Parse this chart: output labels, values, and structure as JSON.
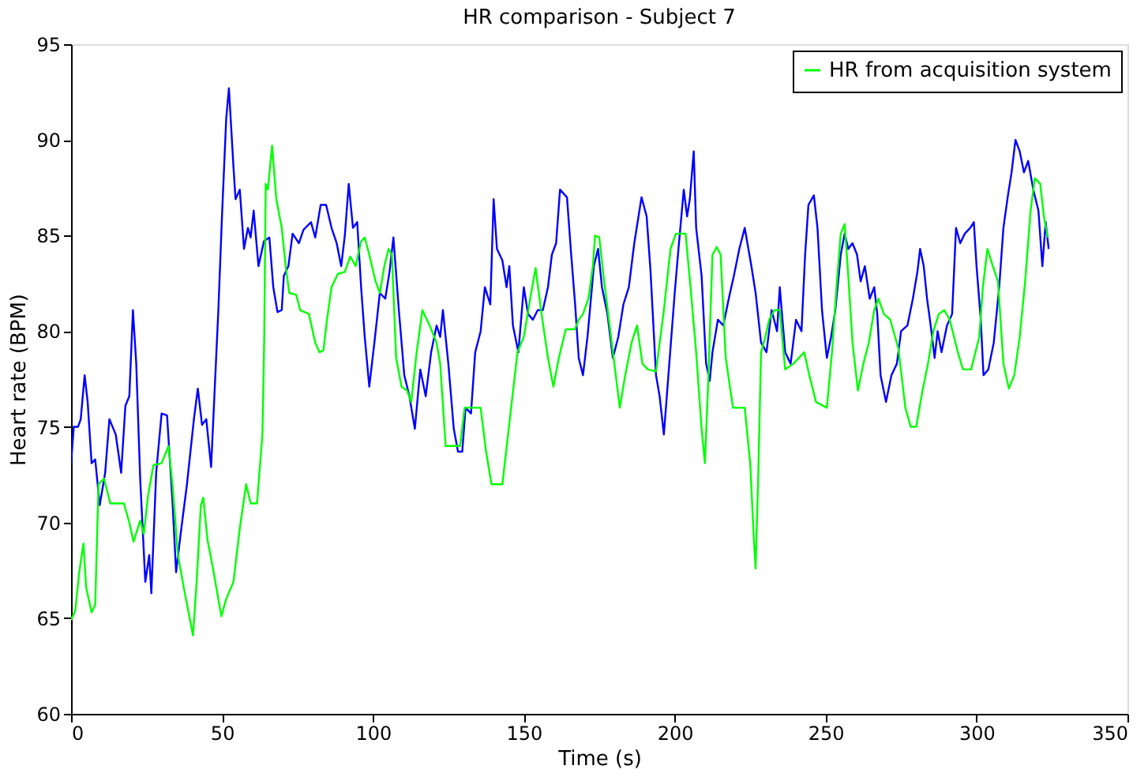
{
  "chart_data": {
    "type": "line",
    "title": "HR comparison - Subject 7",
    "xlabel": "Time (s)",
    "ylabel": "Heart rate (BPM)",
    "xlim": [
      0,
      350
    ],
    "xticks": [
      0,
      50,
      100,
      150,
      200,
      250,
      300,
      350
    ],
    "ylim": [
      60,
      95
    ],
    "yticks": [
      60,
      65,
      70,
      75,
      80,
      85,
      90,
      95
    ],
    "grid": false,
    "legend": "top right",
    "marker": "none",
    "line_style": "solid",
    "series": [
      {
        "color": "#0000ff",
        "x": [
          0,
          0.9,
          2.3,
          3.2,
          4.5,
          5.5,
          6.8,
          8.0,
          9.5,
          11.3,
          12.7,
          14.8,
          16.6,
          18.0,
          19.3,
          20.5,
          21.6,
          22.9,
          24.6,
          25.9,
          26.6,
          28.2,
          30.0,
          31.8,
          33.6,
          34.8,
          36.3,
          38.4,
          40.7,
          42.0,
          43.4,
          44.8,
          46.4,
          48.8,
          50.0,
          51.4,
          52.3,
          53.8,
          54.5,
          55.9,
          57.3,
          58.6,
          59.5,
          60.5,
          62.1,
          63.9,
          65.7,
          67.0,
          68.4,
          69.8,
          70.5,
          72.0,
          73.4,
          75.5,
          77.0,
          79.5,
          80.9,
          82.7,
          84.5,
          86.3,
          88.0,
          89.5,
          90.7,
          92.0,
          93.4,
          94.8,
          96.1,
          97.3,
          98.8,
          100.5,
          102.3,
          104.1,
          105.5,
          106.8,
          108.6,
          110.4,
          112.1,
          113.9,
          115.7,
          117.5,
          119.3,
          121.1,
          122.3,
          123.2,
          125.0,
          126.8,
          128.2,
          129.6,
          130.7,
          132.5,
          133.9,
          135.7,
          137.1,
          138.9,
          140.0,
          141.1,
          142.9,
          144.3,
          145.2,
          146.4,
          148.2,
          150.0,
          151.4,
          153.0,
          154.6,
          156.3,
          158.0,
          159.3,
          160.7,
          162.0,
          164.3,
          165.7,
          167.0,
          168.2,
          169.6,
          171.1,
          173.2,
          174.6,
          175.9,
          177.7,
          179.5,
          181.3,
          183.0,
          184.8,
          186.6,
          189.0,
          190.7,
          192.0,
          193.8,
          195.0,
          196.4,
          198.2,
          200.0,
          201.4,
          203.0,
          204.1,
          205.0,
          206.3,
          207.1,
          208.9,
          210.4,
          211.6,
          212.5,
          214.3,
          216.1,
          217.9,
          219.6,
          221.4,
          223.2,
          225.4,
          226.8,
          228.6,
          230.4,
          232.1,
          233.9,
          234.8,
          236.6,
          238.4,
          240.2,
          242.0,
          243.2,
          244.3,
          246.1,
          247.3,
          248.8,
          250.4,
          251.8,
          253.2,
          255.0,
          256.3,
          257.5,
          258.9,
          260.4,
          261.6,
          263.0,
          264.6,
          266.1,
          267.1,
          268.2,
          270.0,
          271.8,
          273.6,
          275.0,
          277.1,
          278.9,
          280.4,
          281.3,
          282.5,
          283.6,
          284.8,
          286.1,
          287.1,
          288.4,
          290.2,
          291.9,
          293.2,
          294.6,
          296.1,
          297.9,
          299.1,
          300.0,
          301.4,
          302.3,
          303.9,
          305.7,
          307.5,
          308.9,
          310.4,
          311.6,
          312.9,
          314.3,
          315.7,
          317.1,
          318.8,
          320.5,
          321.8,
          322.9,
          323.9
        ],
        "values": [
          73.1,
          75,
          75,
          75.4,
          77.7,
          76.3,
          73.1,
          73.3,
          70.9,
          72.6,
          75.4,
          74.6,
          72.6,
          76.1,
          76.6,
          81.1,
          78.3,
          72.3,
          66.9,
          68.3,
          66.3,
          72.6,
          75.7,
          75.6,
          71.1,
          67.4,
          69.4,
          72,
          75.4,
          77,
          75.1,
          75.4,
          72.9,
          81.1,
          86,
          91.1,
          92.7,
          88.6,
          86.9,
          87.4,
          84.3,
          85.4,
          84.9,
          86.3,
          83.4,
          84.7,
          84.9,
          82.3,
          81,
          81.1,
          82.9,
          83.4,
          85.1,
          84.6,
          85.3,
          85.7,
          84.9,
          86.6,
          86.6,
          85.4,
          84.6,
          83.4,
          85,
          87.7,
          85.4,
          85.7,
          82.3,
          79.7,
          77.1,
          79.4,
          82,
          81.7,
          83.1,
          84.9,
          81.1,
          77.7,
          76.6,
          74.9,
          78,
          76.6,
          78.9,
          80.3,
          79.7,
          81.1,
          78.3,
          74.9,
          73.7,
          73.7,
          76,
          75.7,
          78.9,
          80,
          82.3,
          81.4,
          86.9,
          84.3,
          83.7,
          82.3,
          83.4,
          80.3,
          78.9,
          82.3,
          80.9,
          80.6,
          81.1,
          81.1,
          82.3,
          84,
          84.6,
          87.4,
          87,
          84,
          81.4,
          78.6,
          77.7,
          79.7,
          83.4,
          84.3,
          82.3,
          80.9,
          78.6,
          79.7,
          81.4,
          82.3,
          84.6,
          87,
          86,
          83.1,
          77.7,
          76.6,
          74.6,
          78.3,
          82,
          84.6,
          87.4,
          86,
          86.9,
          89.4,
          85.4,
          82.9,
          78.3,
          77.4,
          78.9,
          80.6,
          80.3,
          81.7,
          82.9,
          84.3,
          85.4,
          83.4,
          82,
          79.4,
          78.9,
          81.1,
          80,
          82.3,
          78.9,
          78.3,
          80.6,
          80,
          84,
          86.6,
          87.1,
          85.4,
          81.1,
          78.6,
          79.7,
          81.1,
          84,
          85.1,
          84.3,
          84.6,
          84,
          82.6,
          83.4,
          81.7,
          82.3,
          80.9,
          77.7,
          76.3,
          77.7,
          78.3,
          80,
          80.3,
          81.7,
          83.1,
          84.3,
          83.4,
          81.7,
          80.3,
          78.6,
          80,
          78.9,
          80.3,
          80.9,
          85.4,
          84.6,
          85.1,
          85.4,
          85.7,
          83.4,
          80.6,
          77.7,
          78,
          79.4,
          82.3,
          85.4,
          87.1,
          88.3,
          90,
          89.4,
          88.3,
          88.9,
          87.4,
          86.3,
          83.4,
          85.7,
          84.3
        ]
      },
      {
        "name": "HR from acquisition system",
        "color": "#00ff00",
        "x": [
          0,
          1.4,
          2.7,
          4.1,
          5.0,
          6.8,
          8.0,
          9.1,
          10.9,
          13.0,
          17.5,
          19.3,
          20.7,
          22.9,
          24.1,
          25.5,
          27.3,
          30.0,
          32.3,
          33.6,
          35.4,
          37.7,
          40.4,
          41.6,
          43.0,
          43.8,
          45.2,
          46.9,
          49.8,
          51.4,
          53.8,
          55.9,
          58.0,
          59.5,
          61.6,
          63.4,
          64.0,
          64.5,
          65.2,
          66.6,
          68.0,
          69.8,
          71.1,
          72.3,
          74.6,
          75.9,
          78.8,
          80.9,
          82.3,
          83.6,
          84.8,
          86.3,
          88.4,
          90.7,
          92.5,
          94.3,
          96.1,
          97.3,
          98.8,
          100.9,
          102.3,
          103.8,
          105.2,
          106.3,
          107.7,
          109.5,
          111.3,
          112.7,
          114.5,
          116.4,
          118.8,
          121.1,
          122.3,
          124.1,
          125.9,
          127.7,
          128.9,
          130.4,
          132.1,
          135.7,
          137.5,
          139.3,
          142.9,
          145.0,
          147.9,
          150.0,
          152.1,
          153.9,
          155.7,
          158.0,
          159.8,
          161.6,
          163.9,
          166.9,
          168.2,
          169.6,
          171.4,
          172.9,
          173.6,
          175.0,
          176.4,
          178.2,
          180.0,
          181.8,
          183.6,
          185.7,
          187.5,
          189.3,
          191.1,
          193.8,
          196.4,
          198.6,
          200.4,
          203.6,
          205.4,
          207.1,
          208.9,
          210.0,
          211.1,
          212.5,
          213.9,
          215.2,
          216.9,
          219.3,
          223.2,
          225.0,
          226.3,
          226.8,
          227.7,
          228.6,
          230.0,
          231.3,
          233.0,
          234.8,
          236.6,
          239.3,
          242.9,
          244.6,
          246.8,
          250.4,
          252.1,
          253.6,
          255.0,
          256.3,
          257.5,
          258.9,
          260.7,
          262.5,
          264.3,
          266.1,
          267.5,
          269.3,
          271.4,
          274.1,
          276.4,
          278.2,
          280.0,
          282.1,
          283.9,
          285.7,
          287.5,
          289.3,
          291.1,
          293.8,
          295.5,
          298.2,
          300.9,
          302.1,
          303.6,
          305.4,
          307.1,
          308.9,
          310.7,
          312.5,
          314.3,
          316.1,
          317.9,
          319.3,
          321.1,
          322.3,
          323.6
        ],
        "values": [
          64.9,
          65.4,
          67.4,
          68.9,
          66.6,
          65.3,
          65.7,
          72,
          72.3,
          71,
          71,
          70,
          69,
          70.1,
          69.4,
          71.4,
          73,
          73.1,
          74,
          72,
          68.3,
          66.3,
          64.1,
          66.9,
          70.9,
          71.3,
          69.1,
          67.7,
          65.1,
          66,
          66.9,
          69.7,
          72,
          71,
          71,
          74.6,
          79.7,
          87.7,
          87.4,
          89.7,
          86.9,
          85.4,
          83.4,
          82,
          81.9,
          81.1,
          80.9,
          79.4,
          78.9,
          79,
          80.6,
          82.3,
          83,
          83.1,
          83.9,
          83.4,
          84.7,
          84.9,
          84,
          82.6,
          82,
          83.4,
          84.3,
          84,
          78.6,
          77.1,
          76.9,
          76.3,
          78.9,
          81.1,
          80.3,
          79.4,
          78.3,
          74,
          74,
          74,
          74,
          76,
          76,
          76,
          73.7,
          72,
          72,
          74.9,
          78.9,
          79.7,
          81.7,
          83.3,
          81.1,
          78.6,
          77.1,
          78.6,
          80.1,
          80.1,
          80.6,
          80.9,
          81.7,
          83.4,
          85,
          84.9,
          82.9,
          80.6,
          78.3,
          76,
          77.7,
          79.4,
          80.3,
          78.3,
          78,
          77.9,
          81.1,
          84.3,
          85.1,
          85.1,
          82,
          78.9,
          74.9,
          73.1,
          77.4,
          84,
          84.4,
          84,
          78.6,
          76,
          76,
          73.1,
          68.9,
          67.6,
          72.6,
          78.9,
          79.7,
          80.6,
          81.1,
          81.1,
          78,
          78.3,
          78.9,
          77.7,
          76.3,
          76,
          78.9,
          82.3,
          85.1,
          85.6,
          82.9,
          79.4,
          76.9,
          78.3,
          79.4,
          81.1,
          81.7,
          80.9,
          80.6,
          79.1,
          76,
          75,
          75,
          76.9,
          78.3,
          80,
          80.9,
          81.1,
          80.6,
          78.9,
          78,
          78,
          79.7,
          82.3,
          84.3,
          83.4,
          82.6,
          78.3,
          77,
          77.7,
          79.7,
          82.6,
          86.3,
          88,
          87.7,
          86,
          84.9
        ]
      }
    ]
  }
}
